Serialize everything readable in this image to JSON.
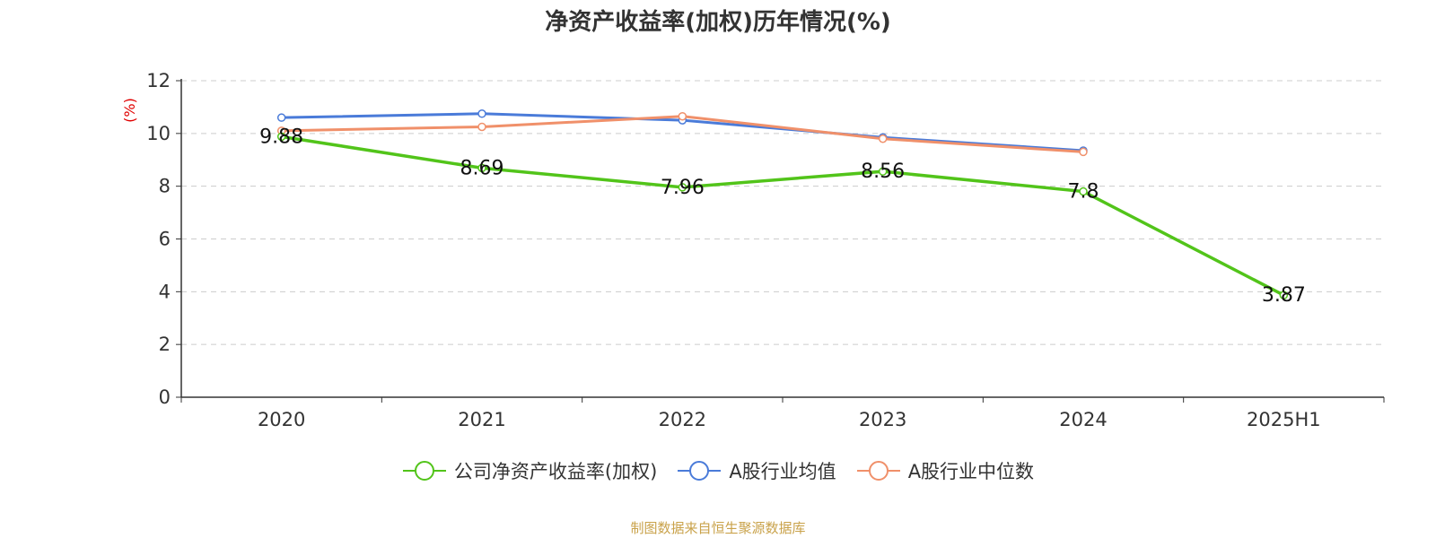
{
  "chart_data": {
    "type": "line",
    "title": "净资产收益率(加权)历年情况(%)",
    "ylabel": "(%)",
    "categories": [
      "2020",
      "2021",
      "2022",
      "2023",
      "2024",
      "2025H1"
    ],
    "ylim": [
      0,
      12
    ],
    "yticks": [
      0,
      2,
      4,
      6,
      8,
      10,
      12
    ],
    "grid": true,
    "legend_position": "bottom",
    "series": [
      {
        "name": "公司净资产收益率(加权)",
        "color": "#52c41a",
        "values": [
          9.88,
          8.69,
          7.96,
          8.56,
          7.8,
          3.87
        ],
        "labels": [
          "9.88",
          "8.69",
          "7.96",
          "8.56",
          "7.8",
          "3.87"
        ]
      },
      {
        "name": "A股行业均值",
        "color": "#4a7bd9",
        "values": [
          10.6,
          10.75,
          10.5,
          9.85,
          9.35,
          null
        ]
      },
      {
        "name": "A股行业中位数",
        "color": "#f0906a",
        "values": [
          10.1,
          10.25,
          10.65,
          9.8,
          9.3,
          null
        ]
      }
    ]
  },
  "source": "制图数据来自恒生聚源数据库"
}
